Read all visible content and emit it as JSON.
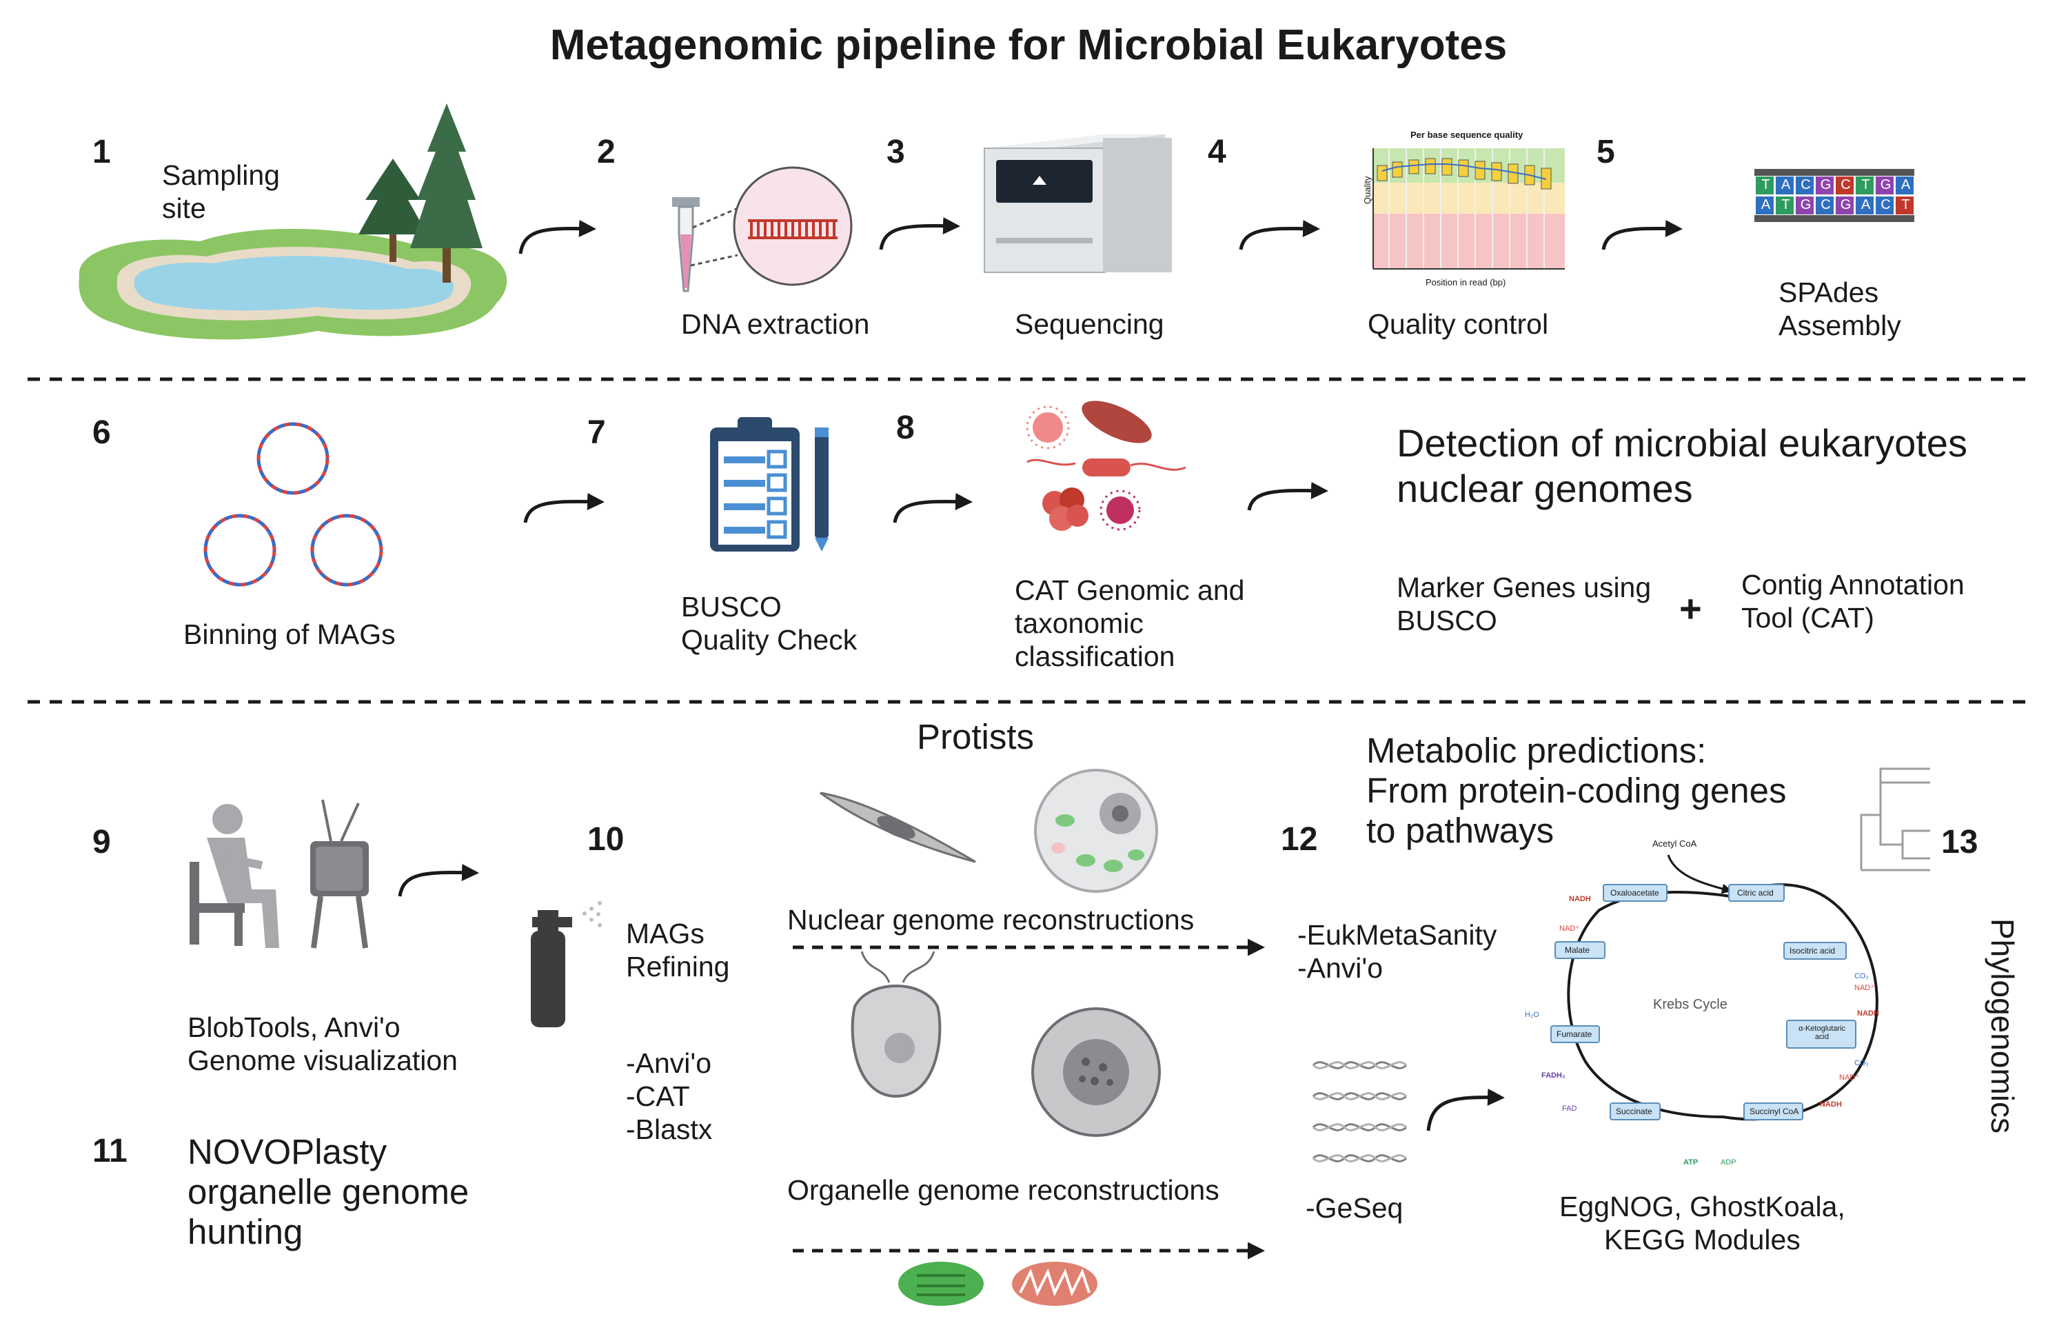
{
  "title": "Metagenomic pipeline for Microbial Eukaryotes",
  "steps": [
    {
      "n": "1",
      "label": [
        "Sampling",
        "site"
      ]
    },
    {
      "n": "2",
      "label": [
        "DNA extraction"
      ]
    },
    {
      "n": "3",
      "label": [
        "Sequencing"
      ]
    },
    {
      "n": "4",
      "label": [
        "Quality control"
      ]
    },
    {
      "n": "5",
      "label": [
        "SPAdes",
        "Assembly"
      ]
    },
    {
      "n": "6",
      "label": [
        "Binning of MAGs"
      ]
    },
    {
      "n": "7",
      "label": [
        "BUSCO",
        "Quality Check"
      ]
    },
    {
      "n": "8",
      "label": [
        "CAT Genomic and",
        "taxonomic",
        "classification"
      ]
    },
    {
      "n": "9",
      "label": [
        "BlobTools, Anvi'o",
        "Genome visualization"
      ]
    },
    {
      "n": "10",
      "label": [
        "MAGs",
        "Refining"
      ]
    },
    {
      "n": "11",
      "label": [
        "NOVOPlasty",
        "organelle genome",
        "hunting"
      ]
    },
    {
      "n": "12",
      "label": [
        "-EukMetaSanity",
        "-Anvi'o"
      ]
    },
    {
      "n": "13",
      "label": [
        "Phylogenomics"
      ]
    }
  ],
  "detection": {
    "heading": [
      "Detection of microbial eukaryotes",
      "nuclear genomes"
    ],
    "left": [
      "Marker Genes using",
      "BUSCO"
    ],
    "plus": "+",
    "right": [
      "Contig Annotation",
      "Tool (CAT)"
    ]
  },
  "refining_tools": [
    "-Anvi'o",
    "-CAT",
    "-Blastx"
  ],
  "protists": {
    "heading": "Protists",
    "nuclear": "Nuclear genome reconstructions",
    "organelle": "Organelle genome reconstructions"
  },
  "geseq": "-GeSeq",
  "metabolic": {
    "heading": [
      "Metabolic predictions:",
      "From protein-coding genes",
      "to pathways"
    ],
    "tools": [
      "EggNOG, GhostKoala,",
      "KEGG Modules"
    ]
  },
  "qc_chart": {
    "title": "Per base sequence quality",
    "ylabel": "Quality",
    "xlabel": "Position in read (bp)"
  },
  "krebs": {
    "center": "Krebs Cycle",
    "top": "Acetyl CoA",
    "nodes": [
      "Citric acid",
      "Isocitric acid",
      "α-Ketoglutaric acid",
      "Succinyl CoA",
      "Succinate",
      "Fumarate",
      "Malate",
      "Oxaloacetate"
    ],
    "side": [
      "CO₂",
      "NAD⁺",
      "NADH",
      "CO₂",
      "NAD⁺",
      "NADH",
      "ATP",
      "ADP",
      "FADH₂",
      "FAD",
      "H₂O",
      "NAD⁺",
      "NADH"
    ]
  },
  "dna_letters": {
    "top": [
      "T",
      "A",
      "C",
      "G",
      "C",
      "T",
      "G",
      "A"
    ],
    "bottom": [
      "A",
      "T",
      "G",
      "C",
      "G",
      "A",
      "C",
      "T"
    ]
  },
  "colors": {
    "arrow": "#1a1a1a",
    "lake": "#9ad3e8",
    "grass": "#8cc664",
    "dna_red": "#e0413a",
    "dna_blue": "#3b6cc8",
    "chloroplast": "#4caf50",
    "mitochondria": "#e08070"
  }
}
